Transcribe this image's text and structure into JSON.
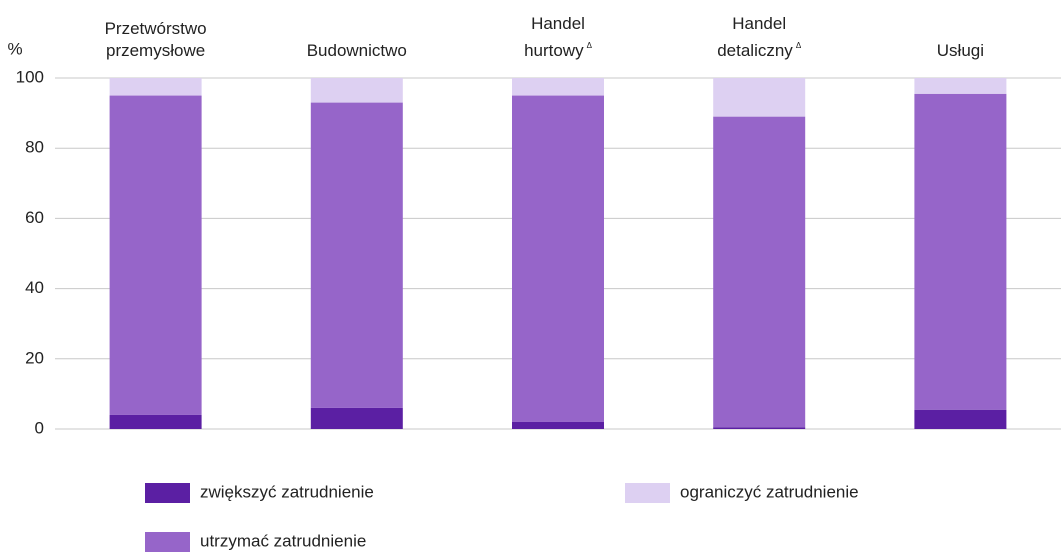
{
  "chart_data": {
    "type": "stacked-bar",
    "y_axis_label": "%",
    "categories": [
      "Przetwórstwo\nprzemysłowe",
      "Budownictwo",
      "Handel\nhurtowy",
      "Handel\ndetaliczny",
      "Usługi"
    ],
    "category_marks": [
      null,
      null,
      "Δ",
      "Δ",
      null
    ],
    "series": [
      {
        "name": "zwiększyć zatrudnienie",
        "color": "#5b1fa3",
        "values": [
          4,
          6,
          2,
          0.5,
          5.5
        ]
      },
      {
        "name": "utrzymać zatrudnienie",
        "color": "#9665c9",
        "values": [
          91,
          87,
          93,
          88.5,
          90
        ]
      },
      {
        "name": "ograniczyć zatrudnienie",
        "color": "#ddd0f2",
        "values": [
          5,
          7,
          5,
          11,
          4.5
        ]
      }
    ],
    "ylim": [
      0,
      100
    ],
    "yticks": [
      0,
      20,
      40,
      60,
      80,
      100
    ],
    "grid": true
  }
}
